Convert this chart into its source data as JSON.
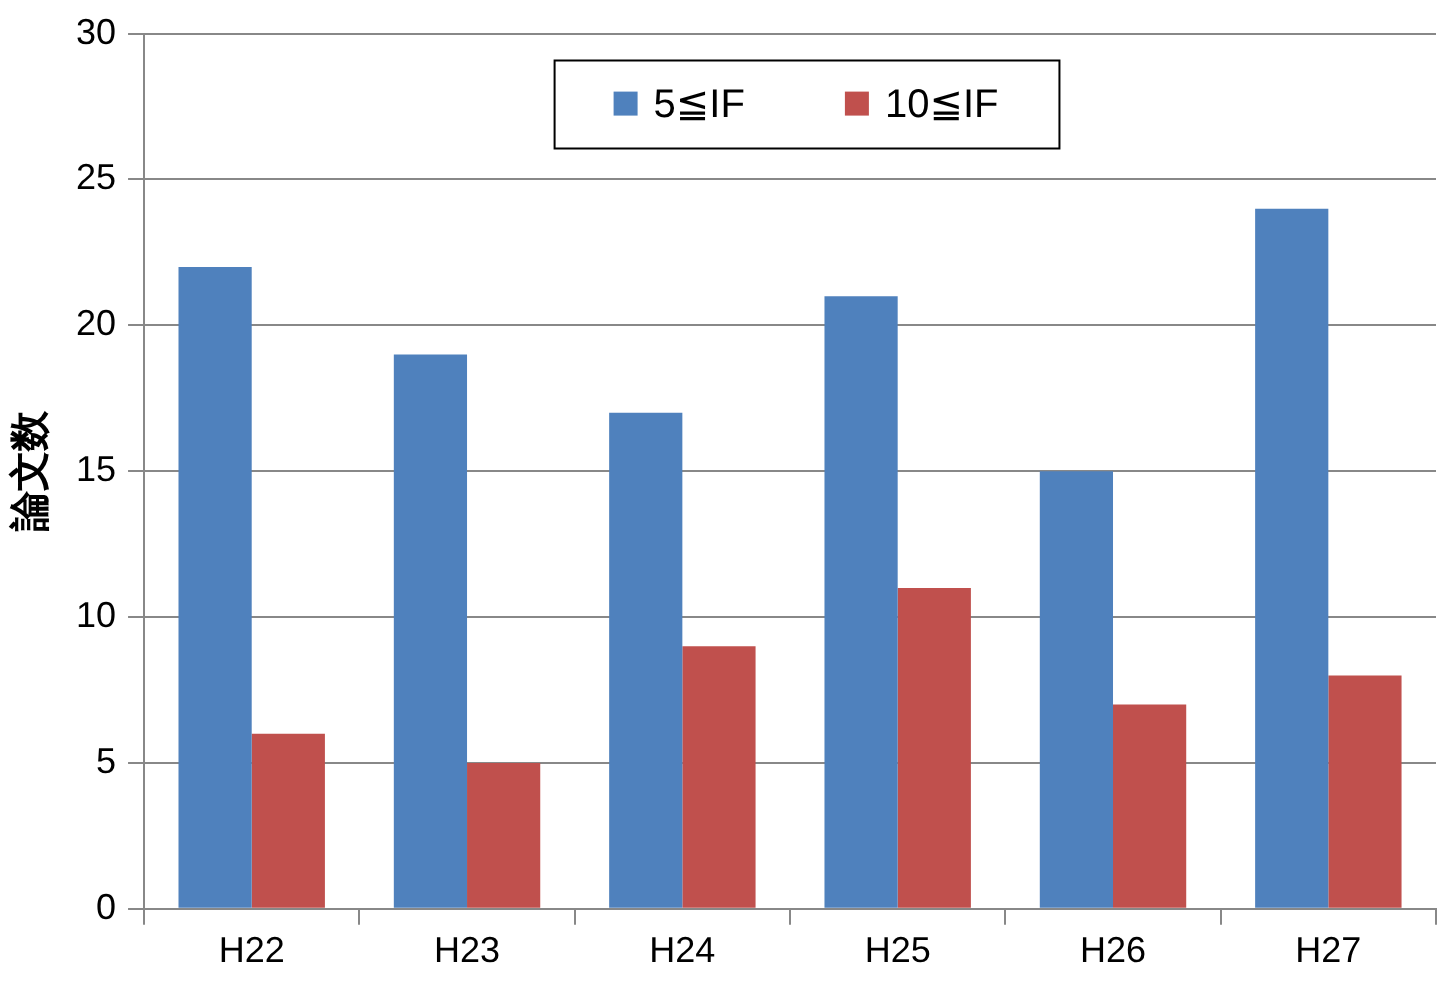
{
  "chart_data": {
    "type": "bar",
    "ylabel": "論文数",
    "categories": [
      "H22",
      "H23",
      "H24",
      "H25",
      "H26",
      "H27"
    ],
    "series": [
      {
        "name": "5≦IF",
        "color": "#4f81bd",
        "values": [
          22,
          19,
          17,
          21,
          15,
          24
        ]
      },
      {
        "name": "10≦IF",
        "color": "#c0504d",
        "values": [
          6,
          5,
          9,
          11,
          7,
          8
        ]
      }
    ],
    "ylim": [
      0,
      30
    ],
    "yticks": [
      0,
      5,
      10,
      15,
      20,
      25,
      30
    ],
    "grid": "y",
    "legend": "top"
  }
}
